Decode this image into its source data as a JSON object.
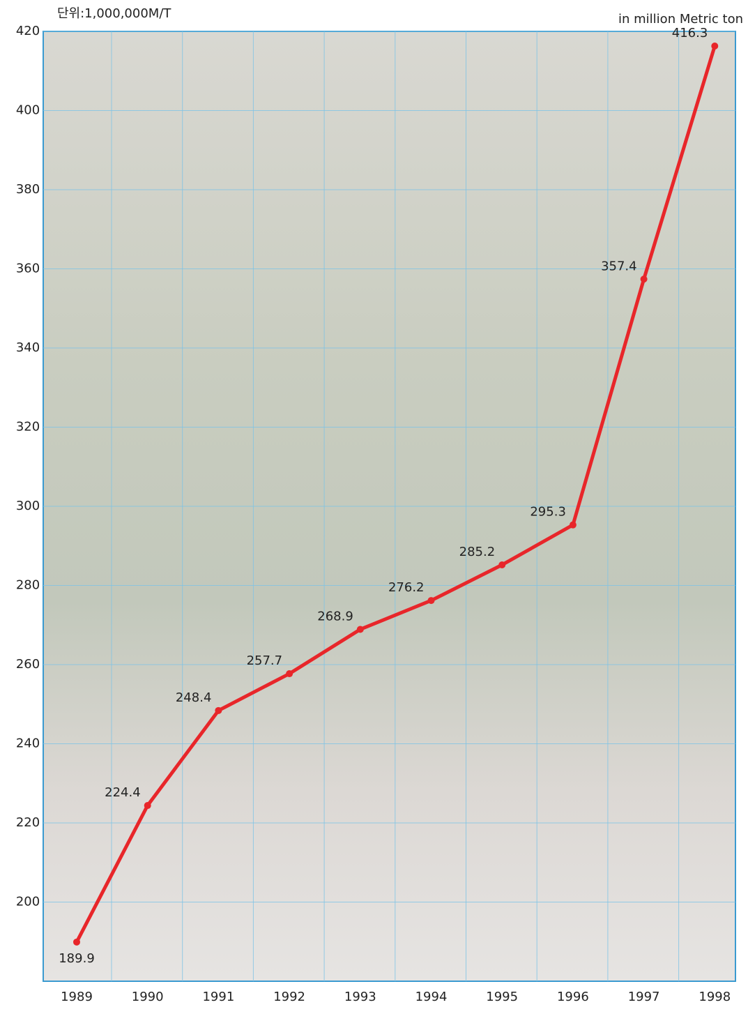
{
  "chart_data": {
    "type": "line",
    "unit_label": "단위:1,000,000M/T",
    "unit_label_en": "in million Metric ton",
    "categories": [
      "1989",
      "1990",
      "1991",
      "1992",
      "1993",
      "1994",
      "1995",
      "1996",
      "1997",
      "1998"
    ],
    "series": [
      {
        "color": "#e8262a",
        "values": [
          189.9,
          224.4,
          248.4,
          257.7,
          268.9,
          276.2,
          285.2,
          295.3,
          357.4,
          416.3
        ]
      }
    ],
    "ylim": [
      180,
      420
    ],
    "yticks": [
      200,
      220,
      240,
      260,
      280,
      300,
      320,
      340,
      360,
      380,
      400,
      420
    ],
    "grid": true
  }
}
